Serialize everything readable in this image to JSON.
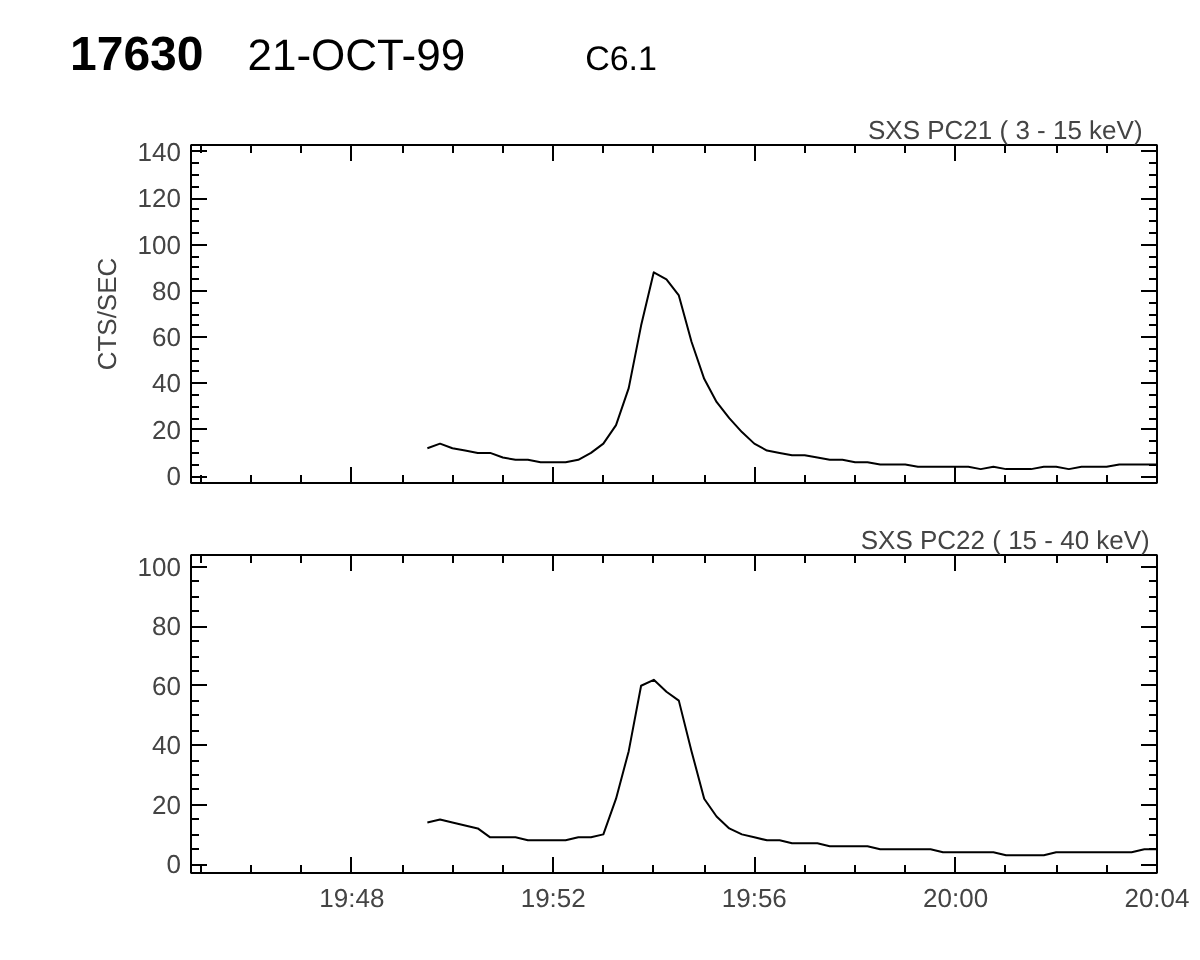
{
  "chart_data": [
    {
      "type": "line",
      "title": "17630",
      "subtitle": "21-OCT-99",
      "annotations": [
        "C6.1",
        "SXS PC21  (  3 - 15 keV)"
      ],
      "ylabel": "CTS/SEC",
      "tick_labels": "y",
      "grid": false,
      "marker": "none",
      "line_style": "solid",
      "xlim": [
        19.7467,
        20.0667
      ],
      "xticks": [
        {
          "value": 19.8,
          "label": null
        },
        {
          "value": 19.8667,
          "label": null
        },
        {
          "value": 19.9333,
          "label": null
        },
        {
          "value": 20.0,
          "label": null
        },
        {
          "value": 20.0667,
          "label": null
        }
      ],
      "ylim": [
        -3,
        143
      ],
      "yticks": [
        0,
        20,
        40,
        60,
        80,
        100,
        120,
        140
      ],
      "series": [
        {
          "color": "#000000",
          "x": [
            19.825,
            19.8292,
            19.8333,
            19.8375,
            19.8417,
            19.8458,
            19.85,
            19.8542,
            19.8583,
            19.8625,
            19.8667,
            19.8708,
            19.875,
            19.8792,
            19.8833,
            19.8875,
            19.8917,
            19.8958,
            19.9,
            19.9042,
            19.9083,
            19.9125,
            19.9167,
            19.9208,
            19.925,
            19.9292,
            19.9333,
            19.9375,
            19.9417,
            19.9458,
            19.95,
            19.9542,
            19.9583,
            19.9625,
            19.9667,
            19.9708,
            19.975,
            19.9792,
            19.9833,
            19.9875,
            19.9917,
            19.9958,
            20.0,
            20.0042,
            20.0083,
            20.0125,
            20.0167,
            20.0208,
            20.025,
            20.0292,
            20.0333,
            20.0375,
            20.0417,
            20.0458,
            20.05,
            20.0542,
            20.0583,
            20.0625,
            20.0667
          ],
          "values": [
            12,
            14,
            12,
            11,
            10,
            10,
            8,
            7,
            7,
            6,
            6,
            6,
            7,
            10,
            14,
            22,
            38,
            65,
            88,
            85,
            78,
            58,
            42,
            32,
            25,
            19,
            14,
            11,
            10,
            9,
            9,
            8,
            7,
            7,
            6,
            6,
            5,
            5,
            5,
            4,
            4,
            4,
            4,
            4,
            3,
            4,
            3,
            3,
            3,
            4,
            4,
            3,
            4,
            4,
            4,
            5,
            5,
            5,
            5
          ]
        }
      ]
    },
    {
      "type": "line",
      "annotations": [
        "SXS PC22  ( 15 - 40 keV)"
      ],
      "grid": false,
      "marker": "none",
      "line_style": "solid",
      "xlim": [
        19.7467,
        20.0667
      ],
      "xticks": [
        {
          "value": 19.8,
          "label": "19:48"
        },
        {
          "value": 19.8667,
          "label": "19:52"
        },
        {
          "value": 19.9333,
          "label": "19:56"
        },
        {
          "value": 20.0,
          "label": "20:00"
        },
        {
          "value": 20.0667,
          "label": "20:04"
        }
      ],
      "ylim": [
        -3,
        104
      ],
      "yticks": [
        0,
        20,
        40,
        60,
        80,
        100
      ],
      "series": [
        {
          "color": "#000000",
          "x": [
            19.825,
            19.8292,
            19.8333,
            19.8375,
            19.8417,
            19.8458,
            19.85,
            19.8542,
            19.8583,
            19.8625,
            19.8667,
            19.8708,
            19.875,
            19.8792,
            19.8833,
            19.8875,
            19.8917,
            19.8958,
            19.9,
            19.9042,
            19.9083,
            19.9125,
            19.9167,
            19.9208,
            19.925,
            19.9292,
            19.9333,
            19.9375,
            19.9417,
            19.9458,
            19.95,
            19.9542,
            19.9583,
            19.9625,
            19.9667,
            19.9708,
            19.975,
            19.9792,
            19.9833,
            19.9875,
            19.9917,
            19.9958,
            20.0,
            20.0042,
            20.0083,
            20.0125,
            20.0167,
            20.0208,
            20.025,
            20.0292,
            20.0333,
            20.0375,
            20.0417,
            20.0458,
            20.05,
            20.0542,
            20.0583,
            20.0625,
            20.0667
          ],
          "values": [
            14,
            15,
            14,
            13,
            12,
            9,
            9,
            9,
            8,
            8,
            8,
            8,
            9,
            9,
            10,
            22,
            38,
            60,
            62,
            58,
            55,
            38,
            22,
            16,
            12,
            10,
            9,
            8,
            8,
            7,
            7,
            7,
            6,
            6,
            6,
            6,
            5,
            5,
            5,
            5,
            5,
            4,
            4,
            4,
            4,
            4,
            3,
            3,
            3,
            3,
            4,
            4,
            4,
            4,
            4,
            4,
            4,
            5,
            5
          ]
        }
      ]
    }
  ]
}
